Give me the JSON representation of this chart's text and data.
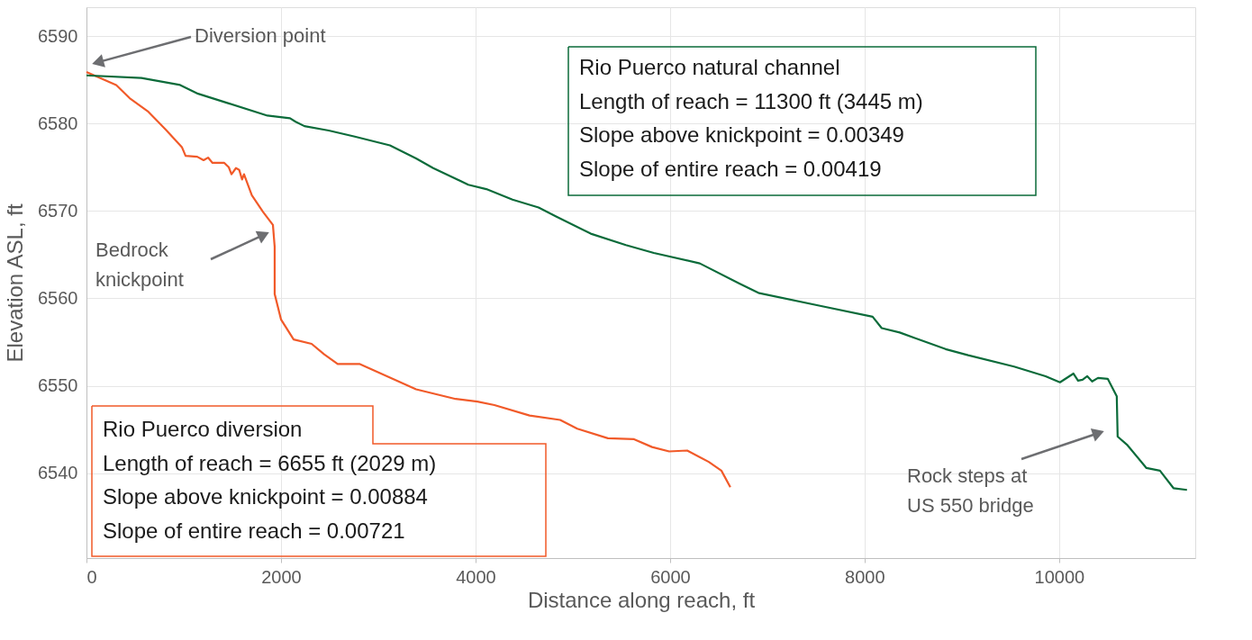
{
  "chart_data": {
    "type": "line",
    "xlabel": "Distance along reach, ft",
    "ylabel": "Elevation ASL, ft",
    "xlim": [
      0,
      11400
    ],
    "ylim": [
      6530.3,
      6593.3
    ],
    "xticks": [
      0,
      2000,
      4000,
      6000,
      8000,
      10000
    ],
    "yticks": [
      6540,
      6550,
      6560,
      6570,
      6580,
      6590
    ],
    "grid": true,
    "marker": "none",
    "line_style": "solid",
    "series": [
      {
        "color": "#f15a29",
        "x": [
          0,
          306,
          444,
          630,
          815,
          981,
          1019,
          1139,
          1204,
          1250,
          1296,
          1417,
          1463,
          1491,
          1537,
          1570,
          1600,
          1620,
          1700,
          1815,
          1917,
          1935,
          1935,
          2000,
          2130,
          2315,
          2444,
          2583,
          2806,
          3028,
          3389,
          3796,
          4019,
          4194,
          4556,
          4870,
          5046,
          5361,
          5630,
          5815,
          5991,
          6176,
          6398,
          6528,
          6620
        ],
        "values": [
          6585.9,
          6584.4,
          6582.9,
          6581.4,
          6579.3,
          6577.3,
          6576.3,
          6576.2,
          6575.8,
          6576.1,
          6575.5,
          6575.5,
          6575.0,
          6574.2,
          6574.9,
          6574.7,
          6573.6,
          6574.2,
          6571.8,
          6569.9,
          6568.4,
          6565.9,
          6560.5,
          6557.6,
          6555.3,
          6554.8,
          6553.6,
          6552.5,
          6552.5,
          6551.4,
          6549.6,
          6548.5,
          6548.2,
          6547.8,
          6546.6,
          6546.1,
          6545.1,
          6544.0,
          6543.9,
          6543.0,
          6542.5,
          6542.6,
          6541.3,
          6540.3,
          6538.4
        ]
      },
      {
        "color": "#0b6b3a",
        "x": [
          0,
          565,
          963,
          1148,
          1463,
          1861,
          2093,
          2150,
          2241,
          2491,
          2759,
          3120,
          3389,
          3565,
          3926,
          4111,
          4380,
          4648,
          4824,
          5185,
          5546,
          5833,
          6306,
          6713,
          6917,
          7565,
          8083,
          8176,
          8361,
          8833,
          9065,
          9537,
          9861,
          10009,
          10148,
          10195,
          10241,
          10290,
          10340,
          10400,
          10500,
          10593,
          10602,
          10704,
          10898,
          11037,
          11176,
          11315
        ],
        "values": [
          6585.5,
          6585.2,
          6584.4,
          6583.4,
          6582.3,
          6580.9,
          6580.6,
          6580.2,
          6579.7,
          6579.2,
          6578.5,
          6577.5,
          6576.0,
          6574.9,
          6573.0,
          6572.5,
          6571.3,
          6570.4,
          6569.4,
          6567.4,
          6566.1,
          6565.2,
          6564.0,
          6561.7,
          6560.6,
          6559.1,
          6557.9,
          6556.6,
          6556.1,
          6554.2,
          6553.5,
          6552.2,
          6551.1,
          6550.4,
          6551.4,
          6550.6,
          6550.7,
          6551.1,
          6550.5,
          6550.9,
          6550.8,
          6548.8,
          6544.2,
          6543.2,
          6540.6,
          6540.3,
          6538.3,
          6538.1
        ]
      }
    ],
    "annotations": [
      "Diversion point",
      "Bedrock\nknickpoint",
      "Rock steps at\nUS 550 bridge",
      "Rio Puerco natural channel\nLength of reach = 11300 ft (3445 m)\nSlope above knickpoint = 0.00349\nSlope of entire reach = 0.00419",
      "Rio Puerco diversion\nLength of reach = 6655 ft (2029 m)\nSlope above knickpoint = 0.00884\nSlope of entire reach = 0.00721"
    ]
  }
}
